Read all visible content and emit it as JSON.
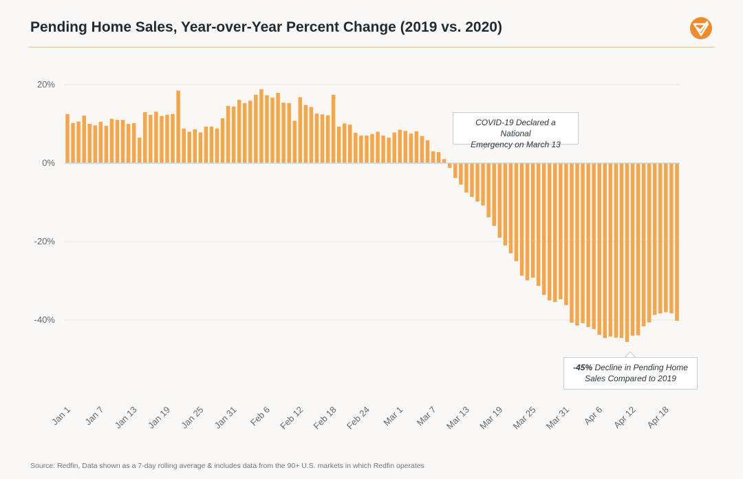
{
  "header": {
    "title": "Pending Home Sales, Year-over-Year Percent Change (2019 vs. 2020)",
    "logo_icon": "redfin-checkmark-logo",
    "accent_color": "#f08a2c"
  },
  "annotations": {
    "covid": {
      "line1": "COVID-19 Declared a National",
      "line2": "Emergency on March 13"
    },
    "decline": {
      "bold": "-45%",
      "line1_rest": " Decline in Pending Home",
      "line2": "Sales Compared to 2019"
    }
  },
  "footer": {
    "source": "Source: Redfin, Data shown as a 7-day rolling average & includes data from the 90+ U.S. markets in which Redfin operates"
  },
  "chart_data": {
    "type": "bar",
    "title": "Pending Home Sales, Year-over-Year Percent Change (2019 vs. 2020)",
    "xlabel": "",
    "ylabel": "",
    "ylim": [
      -60,
      22
    ],
    "y_ticks": [
      {
        "value": 20,
        "label": "20%"
      },
      {
        "value": 0,
        "label": "0%"
      },
      {
        "value": -20,
        "label": "-20%"
      },
      {
        "value": -40,
        "label": "-40%"
      }
    ],
    "x_tick_labels": [
      {
        "index": 0,
        "label": "Jan 1"
      },
      {
        "index": 6,
        "label": "Jan 7"
      },
      {
        "index": 12,
        "label": "Jan 13"
      },
      {
        "index": 18,
        "label": "Jan 19"
      },
      {
        "index": 24,
        "label": "Jan 25"
      },
      {
        "index": 30,
        "label": "Jan 31"
      },
      {
        "index": 36,
        "label": "Feb 6"
      },
      {
        "index": 42,
        "label": "Feb 12"
      },
      {
        "index": 48,
        "label": "Feb 18"
      },
      {
        "index": 54,
        "label": "Feb 24"
      },
      {
        "index": 60,
        "label": "Mar 1"
      },
      {
        "index": 66,
        "label": "Mar 7"
      },
      {
        "index": 72,
        "label": "Mar 13"
      },
      {
        "index": 78,
        "label": "Mar 19"
      },
      {
        "index": 84,
        "label": "Mar 25"
      },
      {
        "index": 90,
        "label": "Mar 31"
      },
      {
        "index": 96,
        "label": "Apr 6"
      },
      {
        "index": 102,
        "label": "Apr 12"
      },
      {
        "index": 108,
        "label": "Apr 18"
      }
    ],
    "grid": true,
    "legend": "none",
    "bar_color": "#f5a54a",
    "series": [
      {
        "values": [
          12.5,
          10.2,
          10.6,
          12.1,
          10.0,
          9.6,
          10.5,
          9.5,
          11.3,
          11.0,
          11.0,
          10.0,
          10.2,
          6.5,
          13.0,
          12.3,
          13.1,
          12.0,
          12.3,
          12.5,
          18.5,
          8.8,
          8.0,
          8.6,
          7.8,
          9.3,
          9.3,
          8.8,
          11.4,
          14.6,
          14.4,
          16.1,
          15.3,
          15.9,
          17.4,
          18.8,
          17.3,
          16.7,
          17.9,
          15.4,
          15.3,
          10.8,
          16.8,
          14.8,
          14.3,
          12.6,
          12.4,
          12.2,
          17.4,
          9.3,
          10.1,
          9.8,
          7.7,
          7.0,
          7.0,
          7.4,
          8.0,
          7.0,
          6.5,
          7.8,
          8.5,
          8.2,
          7.5,
          8.1,
          6.9,
          5.8,
          3.0,
          2.8,
          1.0,
          -1.2,
          -3.8,
          -5.5,
          -7.5,
          -8.6,
          -9.8,
          -10.8,
          -13.8,
          -16.0,
          -19.0,
          -21.0,
          -23.0,
          -25.0,
          -28.7,
          -29.9,
          -29.2,
          -31.3,
          -33.6,
          -35.0,
          -35.4,
          -34.7,
          -36.2,
          -40.7,
          -41.4,
          -40.8,
          -41.8,
          -42.3,
          -43.8,
          -44.6,
          -44.2,
          -44.5,
          -44.6,
          -45.6,
          -44.0,
          -43.9,
          -41.6,
          -40.6,
          -38.7,
          -38.3,
          -38.0,
          -38.3,
          -40.2
        ]
      }
    ]
  }
}
